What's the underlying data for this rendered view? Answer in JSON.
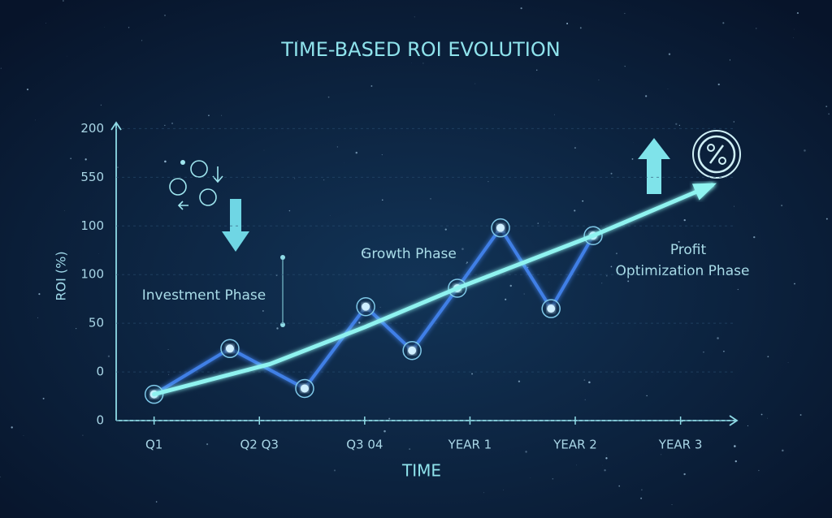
{
  "chart_data": {
    "type": "line",
    "title": "TIME-BASED ROI EVOLUTION",
    "x_label": "TIME",
    "y_label": "ROI (%)",
    "annotations": [
      "Investment Phase",
      "Growth Phase",
      "Profit",
      "Optimization Phase"
    ],
    "xlim": [
      -0.36,
      5.52
    ],
    "xticks": [
      {
        "value": 0,
        "label": "Q1"
      },
      {
        "value": 1,
        "label": "Q2 Q3"
      },
      {
        "value": 2,
        "label": "Q3 04"
      },
      {
        "value": 3,
        "label": "YEAR 1"
      },
      {
        "value": 4,
        "label": "YEAR 2"
      },
      {
        "value": 5,
        "label": "YEAR 3"
      }
    ],
    "ylim": [
      0,
      307
    ],
    "yticks": [
      0,
      {
        "value": 50,
        "label": "0"
      },
      {
        "value": 100,
        "label": "50"
      },
      {
        "value": 150,
        "label": "100"
      },
      {
        "value": 200,
        "label": "100"
      },
      {
        "value": 250,
        "label": "550"
      },
      {
        "value": 300,
        "label": "200"
      }
    ],
    "grid": true,
    "series": [
      {
        "color": "#3f7fe6",
        "markers": true,
        "x": [
          0,
          0.72,
          1.43,
          2.01,
          2.45,
          2.88,
          3.29,
          3.77,
          4.17
        ],
        "values": [
          27,
          74,
          33,
          117,
          72,
          136,
          198,
          115,
          190
        ]
      },
      {
        "color": "#8ff3f0",
        "markers": false,
        "arrow": true,
        "x": [
          0,
          1.1,
          2.0,
          2.88,
          4.17,
          5.3
        ],
        "values": [
          27,
          58,
          96,
          136,
          190,
          242
        ]
      }
    ]
  }
}
